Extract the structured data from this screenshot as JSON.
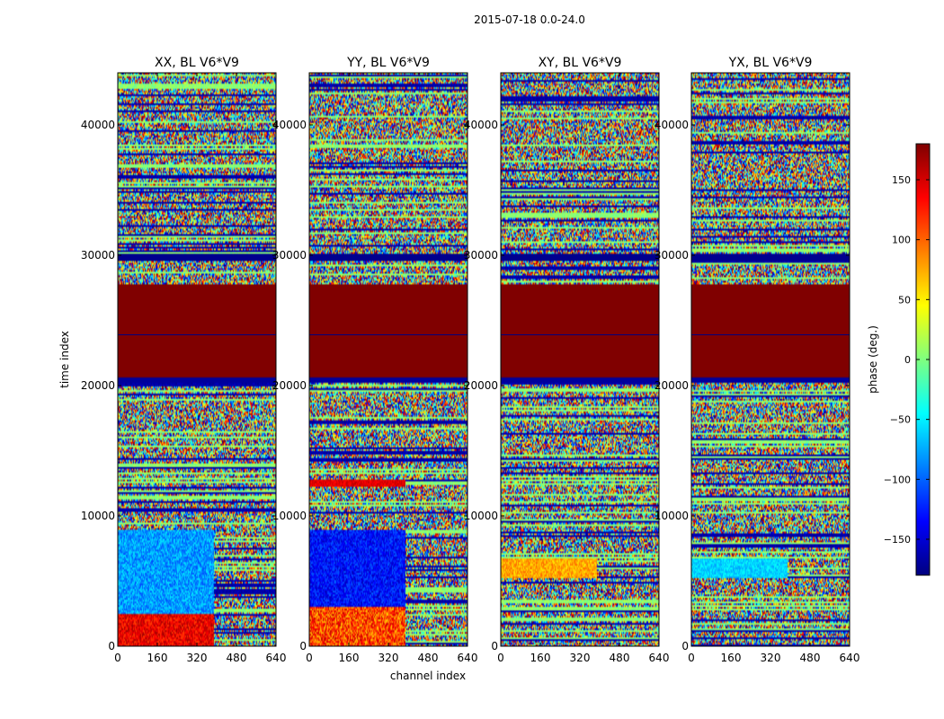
{
  "figure": {
    "suptitle": "2015-07-18 0.0-24.0",
    "xlabel": "channel index",
    "ylabel": "time index",
    "colorbar_label": "phase (deg.)"
  },
  "chart_data": {
    "type": "heatmap",
    "title": "2015-07-18 0.0-24.0",
    "xlabel": "channel index",
    "ylabel": "time index",
    "xlim": [
      0,
      640
    ],
    "ylim": [
      0,
      44000
    ],
    "x_ticks": [
      0,
      160,
      320,
      480,
      640
    ],
    "y_ticks": [
      0,
      10000,
      20000,
      30000,
      40000
    ],
    "colorbar": {
      "label": "phase (deg.)",
      "range": [
        -180,
        180
      ],
      "ticks": [
        -150,
        -100,
        -50,
        0,
        50,
        100,
        150
      ],
      "colormap": "jet"
    },
    "panels": [
      {
        "title": "XX, BL V6*V9",
        "uniform_bands": [
          {
            "t0": 20500,
            "t1": 27800,
            "phase": 180
          },
          {
            "t0": 29600,
            "t1": 30100,
            "phase": -175
          },
          {
            "t0": 20200,
            "t1": 20600,
            "phase": -170
          }
        ],
        "notes": "noisy phase elsewhere; bluish/cyan structure in channels 0-390 below t=8000; red-orange at t<2500"
      },
      {
        "title": "YY, BL V6*V9",
        "uniform_bands": [
          {
            "t0": 20500,
            "t1": 27800,
            "phase": 180
          },
          {
            "t0": 29600,
            "t1": 30100,
            "phase": -175
          },
          {
            "t0": 20200,
            "t1": 20600,
            "phase": -170
          }
        ],
        "notes": "noisy phase elsewhere; strong blue structure in channels 0-390 below t=9000; red band near t=12500"
      },
      {
        "title": "XY, BL V6*V9",
        "uniform_bands": [
          {
            "t0": 20500,
            "t1": 27800,
            "phase": 180
          },
          {
            "t0": 29600,
            "t1": 30100,
            "phase": -175
          },
          {
            "t0": 20200,
            "t1": 20600,
            "phase": -170
          }
        ],
        "notes": "noisy phase elsewhere; orange-yellow block in channels 0-390 around t=5500-6500"
      },
      {
        "title": "YX, BL V6*V9",
        "uniform_bands": [
          {
            "t0": 20500,
            "t1": 27800,
            "phase": 180
          },
          {
            "t0": 29600,
            "t1": 30100,
            "phase": -175
          },
          {
            "t0": 20200,
            "t1": 20600,
            "phase": -170
          }
        ],
        "notes": "noisy phase elsewhere; cyan block in channels 0-390 around t=5500-6500"
      }
    ]
  }
}
